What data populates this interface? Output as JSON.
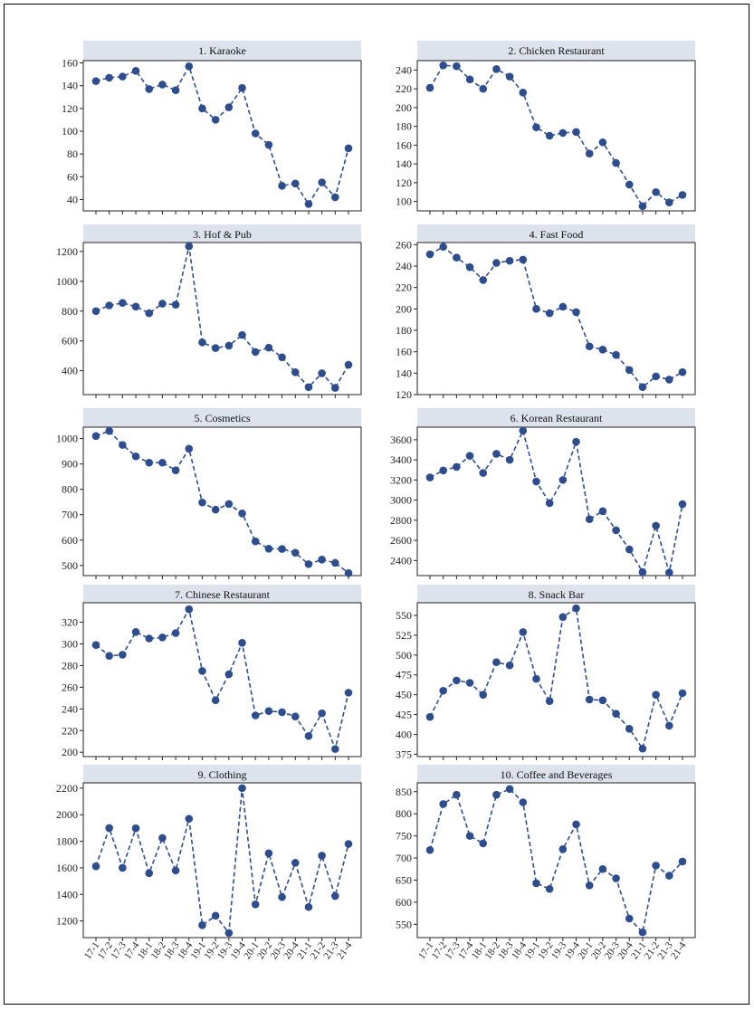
{
  "chart_data": [
    {
      "type": "line",
      "title": "1. Karaoke",
      "categories": [
        "17-1",
        "17-2",
        "17-3",
        "17-4",
        "18-1",
        "18-2",
        "18-3",
        "18-4",
        "19-1",
        "19-2",
        "19-3",
        "19-4",
        "20-1",
        "20-2",
        "20-3",
        "20-4",
        "21-1",
        "21-2",
        "21-3",
        "21-4"
      ],
      "values": [
        144,
        147,
        148,
        153,
        137,
        141,
        136,
        157,
        120,
        110,
        121,
        138,
        98,
        88,
        52,
        54,
        36,
        55,
        42,
        85
      ],
      "ylim": [
        30,
        162
      ],
      "yticks": [
        40,
        60,
        80,
        100,
        120,
        140,
        160
      ]
    },
    {
      "type": "line",
      "title": "2. Chicken Restaurant",
      "categories": [
        "17-1",
        "17-2",
        "17-3",
        "17-4",
        "18-1",
        "18-2",
        "18-3",
        "18-4",
        "19-1",
        "19-2",
        "19-3",
        "19-4",
        "20-1",
        "20-2",
        "20-3",
        "20-4",
        "21-1",
        "21-2",
        "21-3",
        "21-4"
      ],
      "values": [
        221,
        245,
        244,
        230,
        220,
        241,
        233,
        216,
        179,
        170,
        173,
        174,
        151,
        163,
        141,
        118,
        95,
        110,
        99,
        107
      ],
      "ylim": [
        90,
        250
      ],
      "yticks": [
        100,
        120,
        140,
        160,
        180,
        200,
        220,
        240
      ]
    },
    {
      "type": "line",
      "title": "3. Hof & Pub",
      "categories": [
        "17-1",
        "17-2",
        "17-3",
        "17-4",
        "18-1",
        "18-2",
        "18-3",
        "18-4",
        "19-1",
        "19-2",
        "19-3",
        "19-4",
        "20-1",
        "20-2",
        "20-3",
        "20-4",
        "21-1",
        "21-2",
        "21-3",
        "21-4"
      ],
      "values": [
        800,
        838,
        855,
        830,
        786,
        850,
        843,
        1235,
        590,
        552,
        568,
        640,
        526,
        555,
        490,
        390,
        290,
        383,
        285,
        440
      ],
      "ylim": [
        240,
        1260
      ],
      "yticks": [
        400,
        600,
        800,
        1000,
        1200
      ]
    },
    {
      "type": "line",
      "title": "4. Fast Food",
      "categories": [
        "17-1",
        "17-2",
        "17-3",
        "17-4",
        "18-1",
        "18-2",
        "18-3",
        "18-4",
        "19-1",
        "19-2",
        "19-3",
        "19-4",
        "20-1",
        "20-2",
        "20-3",
        "20-4",
        "21-1",
        "21-2",
        "21-3",
        "21-4"
      ],
      "values": [
        251,
        258,
        248,
        239,
        227,
        243,
        245,
        246,
        200,
        196,
        202,
        197,
        165,
        162,
        157,
        143,
        127,
        137,
        134,
        141
      ],
      "ylim": [
        120,
        262
      ],
      "yticks": [
        120,
        140,
        160,
        180,
        200,
        220,
        240,
        260
      ]
    },
    {
      "type": "line",
      "title": "5. Cosmetics",
      "categories": [
        "17-1",
        "17-2",
        "17-3",
        "17-4",
        "18-1",
        "18-2",
        "18-3",
        "18-4",
        "19-1",
        "19-2",
        "19-3",
        "19-4",
        "20-1",
        "20-2",
        "20-3",
        "20-4",
        "21-1",
        "21-2",
        "21-3",
        "21-4"
      ],
      "values": [
        1010,
        1030,
        975,
        930,
        905,
        905,
        875,
        960,
        748,
        720,
        742,
        705,
        595,
        566,
        565,
        550,
        505,
        523,
        510,
        470
      ],
      "ylim": [
        460,
        1045
      ],
      "yticks": [
        500,
        600,
        700,
        800,
        900,
        1000
      ]
    },
    {
      "type": "line",
      "title": "6. Korean Restaurant",
      "categories": [
        "17-1",
        "17-2",
        "17-3",
        "17-4",
        "18-1",
        "18-2",
        "18-3",
        "18-4",
        "19-1",
        "19-2",
        "19-3",
        "19-4",
        "20-1",
        "20-2",
        "20-3",
        "20-4",
        "21-1",
        "21-2",
        "21-3",
        "21-4"
      ],
      "values": [
        3225,
        3295,
        3330,
        3440,
        3270,
        3460,
        3400,
        3690,
        3185,
        2970,
        3200,
        3580,
        2810,
        2890,
        2700,
        2510,
        2285,
        2745,
        2280,
        2960
      ],
      "ylim": [
        2250,
        3725
      ],
      "yticks": [
        2400,
        2600,
        2800,
        3000,
        3200,
        3400,
        3600
      ]
    },
    {
      "type": "line",
      "title": "7. Chinese Restaurant",
      "categories": [
        "17-1",
        "17-2",
        "17-3",
        "17-4",
        "18-1",
        "18-2",
        "18-3",
        "18-4",
        "19-1",
        "19-2",
        "19-3",
        "19-4",
        "20-1",
        "20-2",
        "20-3",
        "20-4",
        "21-1",
        "21-2",
        "21-3",
        "21-4"
      ],
      "values": [
        299,
        289,
        290,
        311,
        305,
        306,
        310,
        332,
        275,
        248,
        272,
        301,
        234,
        238,
        237,
        233,
        215,
        236,
        203,
        255
      ],
      "ylim": [
        196,
        338
      ],
      "yticks": [
        200,
        220,
        240,
        260,
        280,
        300,
        320
      ]
    },
    {
      "type": "line",
      "title": "8. Snack Bar",
      "categories": [
        "17-1",
        "17-2",
        "17-3",
        "17-4",
        "18-1",
        "18-2",
        "18-3",
        "18-4",
        "19-1",
        "19-2",
        "19-3",
        "19-4",
        "20-1",
        "20-2",
        "20-3",
        "20-4",
        "21-1",
        "21-2",
        "21-3",
        "21-4"
      ],
      "values": [
        422,
        455,
        468,
        465,
        450,
        491,
        487,
        529,
        470,
        442,
        548,
        559,
        444,
        443,
        426,
        407,
        382,
        450,
        411,
        452
      ],
      "ylim": [
        372,
        566
      ],
      "yticks": [
        375,
        400,
        425,
        450,
        475,
        500,
        525,
        550
      ]
    },
    {
      "type": "line",
      "title": "9. Clothing",
      "categories": [
        "17-1",
        "17-2",
        "17-3",
        "17-4",
        "18-1",
        "18-2",
        "18-3",
        "18-4",
        "19-1",
        "19-2",
        "19-3",
        "19-4",
        "20-1",
        "20-2",
        "20-3",
        "20-4",
        "21-1",
        "21-2",
        "21-3",
        "21-4"
      ],
      "values": [
        1612,
        1900,
        1600,
        1898,
        1560,
        1825,
        1580,
        1970,
        1168,
        1240,
        1110,
        2200,
        1325,
        1710,
        1380,
        1638,
        1305,
        1692,
        1388,
        1780
      ],
      "ylim": [
        1075,
        2240
      ],
      "yticks": [
        1200,
        1400,
        1600,
        1800,
        2000,
        2200
      ]
    },
    {
      "type": "line",
      "title": "10. Coffee and Beverages",
      "categories": [
        "17-1",
        "17-2",
        "17-3",
        "17-4",
        "18-1",
        "18-2",
        "18-3",
        "18-4",
        "19-1",
        "19-2",
        "19-3",
        "19-4",
        "20-1",
        "20-2",
        "20-3",
        "20-4",
        "21-1",
        "21-2",
        "21-3",
        "21-4"
      ],
      "values": [
        718,
        822,
        843,
        750,
        733,
        843,
        856,
        826,
        643,
        630,
        720,
        776,
        638,
        675,
        654,
        563,
        532,
        683,
        660,
        692
      ],
      "ylim": [
        520,
        870
      ],
      "yticks": [
        550,
        600,
        650,
        700,
        750,
        800,
        850
      ]
    }
  ]
}
